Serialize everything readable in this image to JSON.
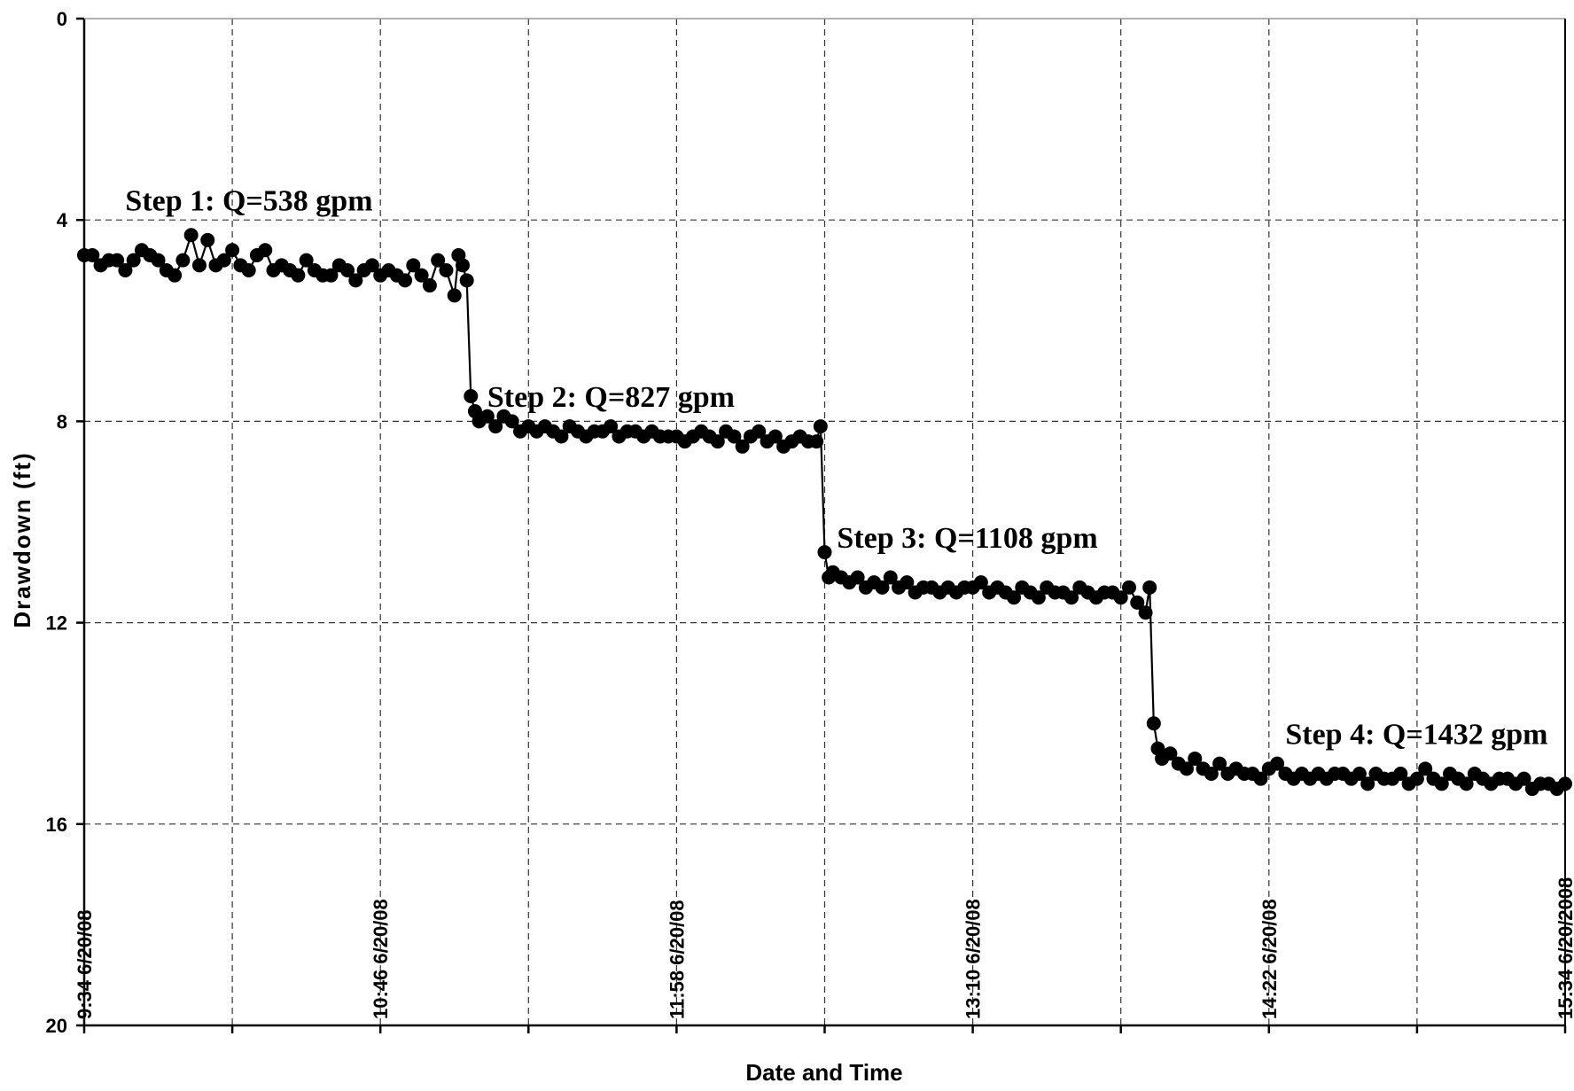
{
  "chart_data": {
    "type": "line",
    "xlabel": "Date and Time",
    "ylabel": "Drawdown (ft)",
    "y_inverted": true,
    "ylim": [
      0,
      20
    ],
    "y_ticks": [
      0,
      4,
      8,
      12,
      16,
      20
    ],
    "x_range": [
      "6/20/2008 9:34",
      "6/20/2008 15:34"
    ],
    "x_ticks": [
      {
        "time": "9:34",
        "label": "9:34  6/20/08"
      },
      {
        "time": "10:46",
        "label": "10:46  6/20/08"
      },
      {
        "time": "11:58",
        "label": "11:58  6/20/08"
      },
      {
        "time": "13:10",
        "label": "13:10  6/20/08"
      },
      {
        "time": "14:22",
        "label": "14:22  6/20/08"
      },
      {
        "time": "15:34",
        "label": "15:34  6/20/2008"
      }
    ],
    "x_minor_gridlines": [
      "10:10",
      "11:22",
      "12:34",
      "13:46",
      "14:58"
    ],
    "grid": "dashed",
    "marker": "filled-circle",
    "color": "#000000",
    "annotations": [
      {
        "text": "Step 1: Q=538 gpm",
        "time": "9:44",
        "drawdown": 3.6
      },
      {
        "text": "Step 2: Q=827 gpm",
        "time": "11:12",
        "drawdown": 7.5
      },
      {
        "text": "Step 3: Q=1108 gpm",
        "time": "12:37",
        "drawdown": 10.3
      },
      {
        "text": "Step 4: Q=1432 gpm",
        "time": "14:26",
        "drawdown": 14.2
      }
    ],
    "series": [
      {
        "points": [
          [
            "9:34",
            4.7
          ],
          [
            "9:36",
            4.7
          ],
          [
            "9:38",
            4.9
          ],
          [
            "9:40",
            4.8
          ],
          [
            "9:42",
            4.8
          ],
          [
            "9:44",
            5.0
          ],
          [
            "9:46",
            4.8
          ],
          [
            "9:48",
            4.6
          ],
          [
            "9:50",
            4.7
          ],
          [
            "9:52",
            4.8
          ],
          [
            "9:54",
            5.0
          ],
          [
            "9:56",
            5.1
          ],
          [
            "9:58",
            4.8
          ],
          [
            "10:00",
            4.3
          ],
          [
            "10:02",
            4.9
          ],
          [
            "10:04",
            4.4
          ],
          [
            "10:06",
            4.9
          ],
          [
            "10:08",
            4.8
          ],
          [
            "10:10",
            4.6
          ],
          [
            "10:12",
            4.9
          ],
          [
            "10:14",
            5.0
          ],
          [
            "10:16",
            4.7
          ],
          [
            "10:18",
            4.6
          ],
          [
            "10:20",
            5.0
          ],
          [
            "10:22",
            4.9
          ],
          [
            "10:24",
            5.0
          ],
          [
            "10:26",
            5.1
          ],
          [
            "10:28",
            4.8
          ],
          [
            "10:30",
            5.0
          ],
          [
            "10:32",
            5.1
          ],
          [
            "10:34",
            5.1
          ],
          [
            "10:36",
            4.9
          ],
          [
            "10:38",
            5.0
          ],
          [
            "10:40",
            5.2
          ],
          [
            "10:42",
            5.0
          ],
          [
            "10:44",
            4.9
          ],
          [
            "10:46",
            5.1
          ],
          [
            "10:48",
            5.0
          ],
          [
            "10:50",
            5.1
          ],
          [
            "10:52",
            5.2
          ],
          [
            "10:54",
            4.9
          ],
          [
            "10:56",
            5.1
          ],
          [
            "10:58",
            5.3
          ],
          [
            "11:00",
            4.8
          ],
          [
            "11:02",
            5.0
          ],
          [
            "11:04",
            5.5
          ],
          [
            "11:05",
            4.7
          ],
          [
            "11:06",
            4.9
          ],
          [
            "11:07",
            5.2
          ],
          [
            "11:08",
            7.5
          ],
          [
            "11:09",
            7.8
          ],
          [
            "11:10",
            8.0
          ],
          [
            "11:12",
            7.9
          ],
          [
            "11:14",
            8.1
          ],
          [
            "11:16",
            7.9
          ],
          [
            "11:18",
            8.0
          ],
          [
            "11:20",
            8.2
          ],
          [
            "11:22",
            8.1
          ],
          [
            "11:24",
            8.2
          ],
          [
            "11:26",
            8.1
          ],
          [
            "11:28",
            8.2
          ],
          [
            "11:30",
            8.3
          ],
          [
            "11:32",
            8.1
          ],
          [
            "11:34",
            8.2
          ],
          [
            "11:36",
            8.3
          ],
          [
            "11:38",
            8.2
          ],
          [
            "11:40",
            8.2
          ],
          [
            "11:42",
            8.1
          ],
          [
            "11:44",
            8.3
          ],
          [
            "11:46",
            8.2
          ],
          [
            "11:48",
            8.2
          ],
          [
            "11:50",
            8.3
          ],
          [
            "11:52",
            8.2
          ],
          [
            "11:54",
            8.3
          ],
          [
            "11:56",
            8.3
          ],
          [
            "11:58",
            8.3
          ],
          [
            "12:00",
            8.4
          ],
          [
            "12:02",
            8.3
          ],
          [
            "12:04",
            8.2
          ],
          [
            "12:06",
            8.3
          ],
          [
            "12:08",
            8.4
          ],
          [
            "12:10",
            8.2
          ],
          [
            "12:12",
            8.3
          ],
          [
            "12:14",
            8.5
          ],
          [
            "12:16",
            8.3
          ],
          [
            "12:18",
            8.2
          ],
          [
            "12:20",
            8.4
          ],
          [
            "12:22",
            8.3
          ],
          [
            "12:24",
            8.5
          ],
          [
            "12:26",
            8.4
          ],
          [
            "12:28",
            8.3
          ],
          [
            "12:30",
            8.4
          ],
          [
            "12:32",
            8.4
          ],
          [
            "12:33",
            8.1
          ],
          [
            "12:34",
            10.6
          ],
          [
            "12:35",
            11.1
          ],
          [
            "12:36",
            11.0
          ],
          [
            "12:38",
            11.1
          ],
          [
            "12:40",
            11.2
          ],
          [
            "12:42",
            11.1
          ],
          [
            "12:44",
            11.3
          ],
          [
            "12:46",
            11.2
          ],
          [
            "12:48",
            11.3
          ],
          [
            "12:50",
            11.1
          ],
          [
            "12:52",
            11.3
          ],
          [
            "12:54",
            11.2
          ],
          [
            "12:56",
            11.4
          ],
          [
            "12:58",
            11.3
          ],
          [
            "13:00",
            11.3
          ],
          [
            "13:02",
            11.4
          ],
          [
            "13:04",
            11.3
          ],
          [
            "13:06",
            11.4
          ],
          [
            "13:08",
            11.3
          ],
          [
            "13:10",
            11.3
          ],
          [
            "13:12",
            11.2
          ],
          [
            "13:14",
            11.4
          ],
          [
            "13:16",
            11.3
          ],
          [
            "13:18",
            11.4
          ],
          [
            "13:20",
            11.5
          ],
          [
            "13:22",
            11.3
          ],
          [
            "13:24",
            11.4
          ],
          [
            "13:26",
            11.5
          ],
          [
            "13:28",
            11.3
          ],
          [
            "13:30",
            11.4
          ],
          [
            "13:32",
            11.4
          ],
          [
            "13:34",
            11.5
          ],
          [
            "13:36",
            11.3
          ],
          [
            "13:38",
            11.4
          ],
          [
            "13:40",
            11.5
          ],
          [
            "13:42",
            11.4
          ],
          [
            "13:44",
            11.4
          ],
          [
            "13:46",
            11.5
          ],
          [
            "13:48",
            11.3
          ],
          [
            "13:50",
            11.6
          ],
          [
            "13:52",
            11.8
          ],
          [
            "13:53",
            11.3
          ],
          [
            "13:54",
            14.0
          ],
          [
            "13:55",
            14.5
          ],
          [
            "13:56",
            14.7
          ],
          [
            "13:58",
            14.6
          ],
          [
            "14:00",
            14.8
          ],
          [
            "14:02",
            14.9
          ],
          [
            "14:04",
            14.7
          ],
          [
            "14:06",
            14.9
          ],
          [
            "14:08",
            15.0
          ],
          [
            "14:10",
            14.8
          ],
          [
            "14:12",
            15.0
          ],
          [
            "14:14",
            14.9
          ],
          [
            "14:16",
            15.0
          ],
          [
            "14:18",
            15.0
          ],
          [
            "14:20",
            15.1
          ],
          [
            "14:22",
            14.9
          ],
          [
            "14:24",
            14.8
          ],
          [
            "14:26",
            15.0
          ],
          [
            "14:28",
            15.1
          ],
          [
            "14:30",
            15.0
          ],
          [
            "14:32",
            15.1
          ],
          [
            "14:34",
            15.0
          ],
          [
            "14:36",
            15.1
          ],
          [
            "14:38",
            15.0
          ],
          [
            "14:40",
            15.0
          ],
          [
            "14:42",
            15.1
          ],
          [
            "14:44",
            15.0
          ],
          [
            "14:46",
            15.2
          ],
          [
            "14:48",
            15.0
          ],
          [
            "14:50",
            15.1
          ],
          [
            "14:52",
            15.1
          ],
          [
            "14:54",
            15.0
          ],
          [
            "14:56",
            15.2
          ],
          [
            "14:58",
            15.1
          ],
          [
            "15:00",
            14.9
          ],
          [
            "15:02",
            15.1
          ],
          [
            "15:04",
            15.2
          ],
          [
            "15:06",
            15.0
          ],
          [
            "15:08",
            15.1
          ],
          [
            "15:10",
            15.2
          ],
          [
            "15:12",
            15.0
          ],
          [
            "15:14",
            15.1
          ],
          [
            "15:16",
            15.2
          ],
          [
            "15:18",
            15.1
          ],
          [
            "15:20",
            15.1
          ],
          [
            "15:22",
            15.2
          ],
          [
            "15:24",
            15.1
          ],
          [
            "15:26",
            15.3
          ],
          [
            "15:28",
            15.2
          ],
          [
            "15:30",
            15.2
          ],
          [
            "15:32",
            15.3
          ],
          [
            "15:34",
            15.2
          ]
        ]
      }
    ]
  }
}
